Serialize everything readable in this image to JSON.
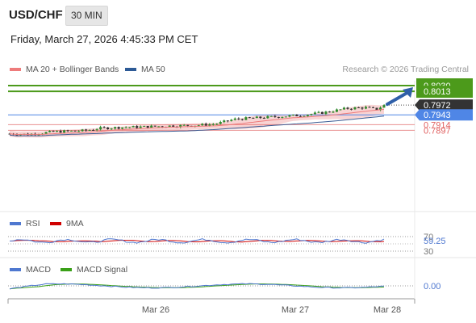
{
  "header": {
    "symbol": "USD/CHF",
    "timeframe": "30 MIN",
    "datetime": "Friday, March 27, 2026 4:45:33 PM CET",
    "credit": "Research © 2026 Trading Central"
  },
  "colors": {
    "green": "#4c9a1b",
    "blue": "#4f86e6",
    "red": "#e06060",
    "dark": "#333333",
    "arrow": "#2f5fa8",
    "bollinger": "#f5c5c5",
    "ma50": "#3b5c94",
    "candle_up": "#2e8b2e",
    "candle_down": "#333333"
  },
  "main_legend": [
    {
      "label": "MA 20 + Bollinger Bands",
      "color": "#ee7b7b"
    },
    {
      "label": "MA 50",
      "color": "#2d5a96"
    }
  ],
  "rsi_legend": [
    {
      "label": "RSI",
      "color": "#4f78d0"
    },
    {
      "label": "9MA",
      "color": "#d00000"
    }
  ],
  "macd_legend": [
    {
      "label": "MACD",
      "color": "#4f78d0"
    },
    {
      "label": "MACD Signal",
      "color": "#3aa018"
    }
  ],
  "chart_data": [
    {
      "type": "candlestick",
      "title": "USD/CHF",
      "x_ticks": [
        "Mar 26",
        "Mar 27",
        "Mar 28"
      ],
      "ylim": [
        0.787,
        0.804
      ],
      "series": [
        {
          "name": "price",
          "start": 0.7887,
          "end": 0.7972,
          "low": 0.7882,
          "high": 0.7975
        },
        {
          "name": "MA 20 + Bollinger Bands"
        },
        {
          "name": "MA 50"
        }
      ],
      "levels": [
        {
          "value": 0.803,
          "label": "0.8030",
          "kind": "target",
          "color": "#4c9a1b"
        },
        {
          "value": 0.8013,
          "label": "0.8013",
          "kind": "target",
          "color": "#4c9a1b"
        },
        {
          "value": 0.7972,
          "label": "0.7972",
          "kind": "last",
          "color": "#333333"
        },
        {
          "value": 0.7943,
          "label": "0.7943",
          "kind": "pivot",
          "color": "#4f86e6"
        },
        {
          "value": 0.7914,
          "label": "0.7914",
          "kind": "support",
          "color": "#e06060"
        },
        {
          "value": 0.7897,
          "label": "0.7897",
          "kind": "support",
          "color": "#e06060"
        }
      ],
      "arrow": {
        "from": 0.7972,
        "to": 0.803,
        "direction": "up"
      }
    },
    {
      "type": "line",
      "title": "RSI",
      "ylim": [
        30,
        70
      ],
      "y_ticks": [
        70,
        30
      ],
      "last_value": 59.25,
      "last_label": "59.25",
      "series": [
        {
          "name": "RSI"
        },
        {
          "name": "9MA"
        }
      ]
    },
    {
      "type": "line",
      "title": "MACD",
      "last_value": 0.0,
      "last_label": "0.00",
      "series": [
        {
          "name": "MACD"
        },
        {
          "name": "MACD Signal"
        }
      ]
    }
  ]
}
